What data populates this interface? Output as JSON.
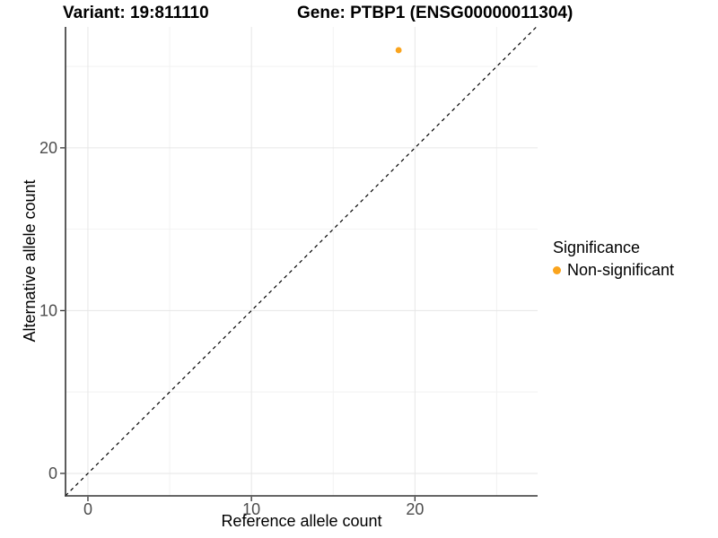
{
  "header": {
    "variant_title": "Variant: 19:811110",
    "gene_title": "Gene: PTBP1 (ENSG00000011304)"
  },
  "chart_data": {
    "type": "scatter",
    "xlabel": "Reference allele count",
    "ylabel": "Alternative allele count",
    "xlim": [
      -1.37,
      27.5
    ],
    "ylim": [
      -1.38,
      27.43
    ],
    "x_ticks": [
      0,
      10,
      20
    ],
    "y_ticks": [
      0,
      10,
      20
    ],
    "major_gridlines": [
      0,
      10,
      20
    ],
    "minor_gridlines": [
      5,
      15,
      25
    ],
    "grid": true,
    "identity_line": {
      "type": "dashed",
      "equation": "y = x",
      "color": "#000000"
    },
    "series": [
      {
        "name": "Non-significant",
        "color": "#FAA41D",
        "points": [
          {
            "x": 19,
            "y": 26
          }
        ]
      }
    ],
    "legend": {
      "title": "Significance",
      "position": "right",
      "items": [
        {
          "label": "Non-significant",
          "color": "#FAA41D"
        }
      ]
    }
  },
  "colors": {
    "axis_line": "#333333",
    "tick_text": "#4D4D4D",
    "major_grid": "#E6E6E6",
    "minor_grid": "#F2F2F2",
    "background": "#FFFFFF"
  }
}
